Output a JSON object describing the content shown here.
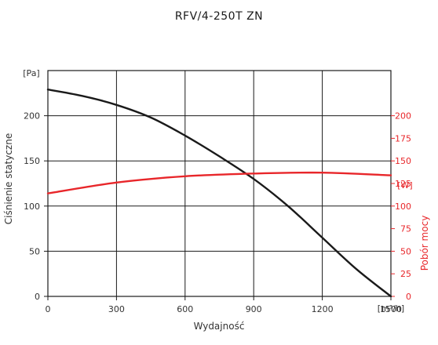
{
  "chart_data": {
    "type": "line",
    "title": "RFV/4-250T ZN",
    "xlabel": "Wydajność",
    "ylabel": "Ciśnienie statyczne",
    "y2label": "Pobór mocy",
    "x_unit": "[m³/h]",
    "y_unit": "[Pa]",
    "y2_unit": "[W]",
    "xlim": [
      0,
      1500
    ],
    "ylim": [
      0,
      250
    ],
    "y2lim": [
      0,
      250
    ],
    "x_ticks": [
      "0",
      "300",
      "600",
      "900",
      "1200",
      "1500"
    ],
    "y_ticks": [
      "0",
      "50",
      "100",
      "150",
      "200"
    ],
    "y2_ticks": [
      "0",
      "25",
      "50",
      "75",
      "100",
      "125",
      "150",
      "175",
      "200"
    ],
    "grid": true,
    "series": [
      {
        "axis": "left",
        "color": "#1a1a1a",
        "x": [
          0,
          150,
          300,
          450,
          600,
          750,
          900,
          1050,
          1200,
          1350,
          1500
        ],
        "y": [
          229,
          222,
          212,
          198,
          178,
          155,
          130,
          100,
          65,
          30,
          0
        ]
      },
      {
        "axis": "right",
        "color": "#e8262a",
        "x": [
          0,
          300,
          600,
          900,
          1200,
          1500
        ],
        "y": [
          114,
          126,
          133,
          136,
          137,
          134
        ]
      }
    ]
  }
}
